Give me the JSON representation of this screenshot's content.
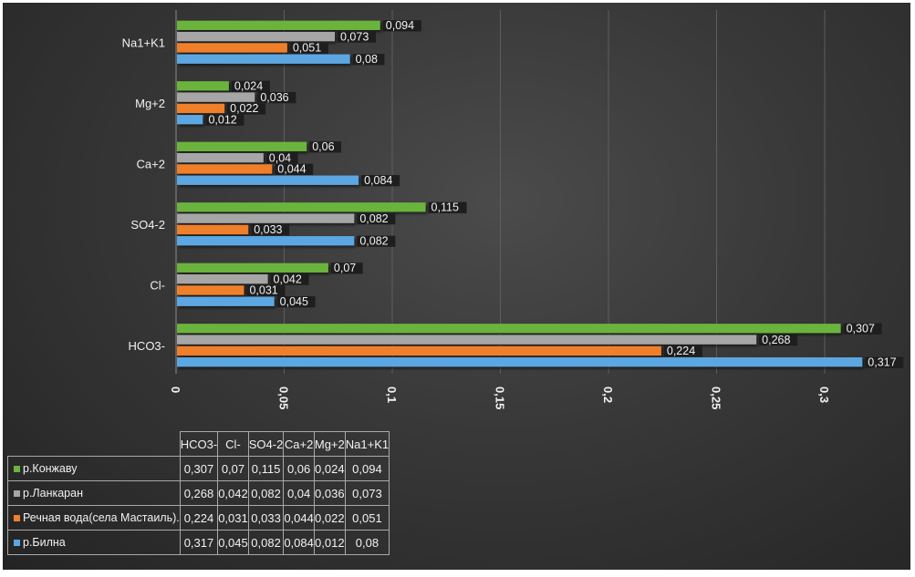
{
  "chart_data": {
    "type": "bar",
    "orientation": "horizontal",
    "categories": [
      "HCO3-",
      "Cl-",
      "SO4-2",
      "Ca+2",
      "Mg+2",
      "Na1+K1"
    ],
    "series": [
      {
        "name": "р.Конжаву",
        "color": "#6ab43e",
        "values": [
          0.307,
          0.07,
          0.115,
          0.06,
          0.024,
          0.094
        ],
        "labels": [
          "0,307",
          "0,07",
          "0,115",
          "0,06",
          "0,024",
          "0,094"
        ]
      },
      {
        "name": "р.Ланкаран",
        "color": "#a6a6a6",
        "values": [
          0.268,
          0.042,
          0.082,
          0.04,
          0.036,
          0.073
        ],
        "labels": [
          "0,268",
          "0,042",
          "0,082",
          "0,04",
          "0,036",
          "0,073"
        ]
      },
      {
        "name": "Речная вода(села Мастаиль).",
        "color": "#f07f2b",
        "values": [
          0.224,
          0.031,
          0.033,
          0.044,
          0.022,
          0.051
        ],
        "labels": [
          "0,224",
          "0,031",
          "0,033",
          "0,044",
          "0,022",
          "0,051"
        ]
      },
      {
        "name": "р.Билна",
        "color": "#5ca7e2",
        "values": [
          0.317,
          0.045,
          0.082,
          0.084,
          0.012,
          0.08
        ],
        "labels": [
          "0,317",
          "0,045",
          "0,082",
          "0,084",
          "0,012",
          "0,08"
        ]
      }
    ],
    "xlim": [
      0,
      0.35
    ],
    "xticks": [
      0,
      0.05,
      0.1,
      0.15,
      0.2,
      0.25,
      0.3
    ],
    "xtick_labels": [
      "0",
      "0,05",
      "0,1",
      "0,15",
      "0,2",
      "0,25",
      "0,3"
    ],
    "grid": true,
    "legend": "data-table",
    "data_table": true,
    "title": "",
    "xlabel": "",
    "ylabel": ""
  }
}
